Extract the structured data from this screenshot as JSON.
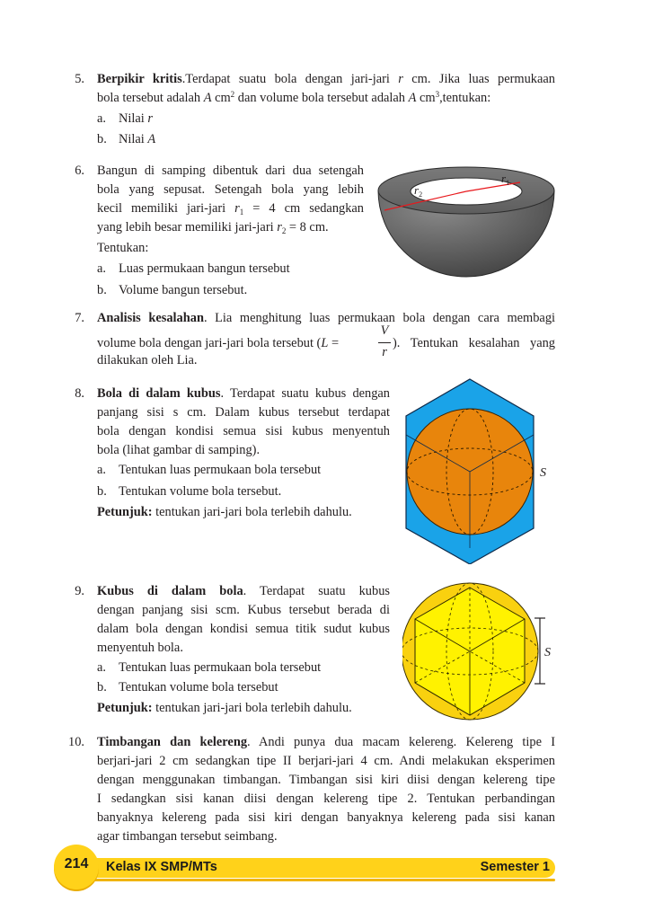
{
  "q5": {
    "number": "5.",
    "title": "Berpikir kritis",
    "line1_a": ".Terdapat suatu bola dengan jari-jari ",
    "var_r": "r",
    "line1_b": " cm. Jika luas permukaan",
    "line2_a": "bola tersebut adalah ",
    "var_A": "A",
    "unit_cm": " cm",
    "sup2": "2",
    "line2_b": " dan volume bola tersebut adalah ",
    "sup3": "3",
    "line2_c": ",tentukan:",
    "opt_a": "a.",
    "opt_a_text": "Nilai ",
    "opt_b": "b.",
    "opt_b_text": "Nilai "
  },
  "q6": {
    "number": "6.",
    "lines": [
      "Bangun di samping dibentuk dari dua setengah",
      "bola yang sepusat. Setengah bola yang lebih"
    ],
    "line3_a": "kecil memiliki jari-jari ",
    "r": "r",
    "sub1": "1",
    "line3_b": " = 4 cm sedangkan",
    "line4_a": "yang lebih besar memiliki jari-jari ",
    "sub2": "2",
    "line4_b": " = 8 cm.",
    "tentukan": "Tentukan:",
    "opt_a": "a.",
    "opt_a_text": "Luas permukaan bangun tersebut",
    "opt_b": "b.",
    "opt_b_text": "Volume bangun tersebut.",
    "fig_r2": "r",
    "fig_r2_sub": "2",
    "fig_r1": "r",
    "fig_r1_sub": "1"
  },
  "q7": {
    "number": "7.",
    "title": "Analisis kesalahan",
    "line1": ". Lia menghitung luas permukaan bola dengan cara membagi",
    "line2_a": "volume bola dengan jari-jari bola tersebut (",
    "L": "L",
    "eq": " = ",
    "frac_num": "V",
    "frac_den": "r",
    "line2_b": "). Tentukan kesalahan yang",
    "line3": "dilakukan oleh Lia."
  },
  "q8": {
    "number": "8.",
    "title": "Bola di dalam kubus",
    "line1": ". Terdapat suatu kubus dengan",
    "lines": [
      "panjang sisi s cm. Dalam kubus tersebut terdapat",
      "bola dengan kondisi semua sisi kubus menyentuh",
      "bola (lihat gambar di samping)."
    ],
    "opt_a": "a.",
    "opt_a_text": "Tentukan luas permukaan bola tersebut",
    "opt_b": "b.",
    "opt_b_text": "Tentukan volume bola tersebut.",
    "hint_label": "Petunjuk:",
    "hint_text": " tentukan jari-jari bola terlebih dahulu.",
    "fig_label": "S",
    "colors": {
      "cube": "#1aa3e8",
      "sphere": "#e8850c"
    }
  },
  "q9": {
    "number": "9.",
    "title": "Kubus di dalam bola",
    "line1": ". Terdapat suatu kubus",
    "lines": [
      "dengan panjang sisi scm. Kubus tersebut berada di",
      "dalam bola dengan kondisi semua titik sudut kubus",
      "menyentuh bola."
    ],
    "opt_a": "a.",
    "opt_a_text": "Tentukan luas permukaan bola tersebut",
    "opt_b": "b.",
    "opt_b_text": "Tentukan volume bola tersebut",
    "hint_label": "Petunjuk:",
    "hint_text": " tentukan jari-jari bola terlebih dahulu.",
    "fig_label": "S",
    "colors": {
      "sphere": "#f9d10f",
      "cube": "#fff200"
    }
  },
  "q10": {
    "number": "10.",
    "title": "Timbangan dan kelereng",
    "line1": ". Andi punya dua macam kelereng. Kelereng tipe I",
    "lines": [
      "berjari-jari 2 cm sedangkan tipe II berjari-jari 4 cm. Andi melakukan eksperimen",
      "dengan menggunakan timbangan. Timbangan sisi kiri diisi dengan kelereng tipe",
      "I sedangkan sisi kanan diisi dengan kelereng tipe 2. Tentukan perbandingan",
      "banyaknya kelereng pada sisi kiri dengan banyaknya kelereng pada sisi kanan"
    ],
    "last_line": "agar timbangan tersebut seimbang."
  },
  "footer": {
    "page_number": "214",
    "book": "Kelas IX SMP/MTs",
    "semester": "Semester 1",
    "accent": "#ffd21a"
  }
}
